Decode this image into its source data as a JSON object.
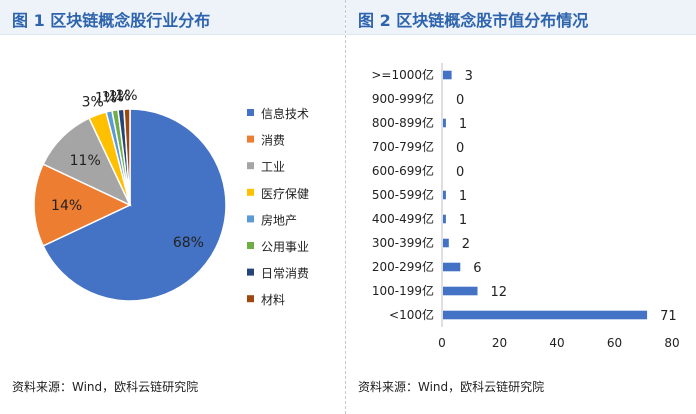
{
  "left": {
    "title": "图 1 区块链概念股行业分布",
    "source": "资料来源：Wind，欧科云链研究院"
  },
  "right": {
    "title": "图 2 区块链概念股市值分布情况",
    "source": "资料来源：Wind，欧科云链研究院"
  },
  "chart_data": [
    {
      "type": "pie",
      "title": "区块链概念股行业分布",
      "legend_position": "right",
      "slices": [
        {
          "label": "信息技术",
          "value": 68,
          "display": "68%",
          "color": "#4472c4"
        },
        {
          "label": "消费",
          "value": 14,
          "display": "14%",
          "color": "#ed7d31"
        },
        {
          "label": "工业",
          "value": 11,
          "display": "11%",
          "color": "#a5a5a5"
        },
        {
          "label": "医疗保健",
          "value": 3,
          "display": "3%",
          "color": "#ffc000"
        },
        {
          "label": "房地产",
          "value": 1,
          "display": "1%",
          "color": "#5b9bd5"
        },
        {
          "label": "公用事业",
          "value": 1,
          "display": "1%",
          "color": "#70ad47"
        },
        {
          "label": "日常消费",
          "value": 1,
          "display": "1%",
          "color": "#264478"
        },
        {
          "label": "材料",
          "value": 1,
          "display": "1%",
          "color": "#9e480e"
        }
      ]
    },
    {
      "type": "bar",
      "orientation": "horizontal",
      "title": "区块链概念股市值分布情况",
      "categories": [
        ">=1000亿",
        "900-999亿",
        "800-899亿",
        "700-799亿",
        "600-699亿",
        "500-599亿",
        "400-499亿",
        "300-399亿",
        "200-299亿",
        "100-199亿",
        "<100亿"
      ],
      "values": [
        3,
        0,
        1,
        0,
        0,
        1,
        1,
        2,
        6,
        12,
        71
      ],
      "color": "#4472c4",
      "xlim": [
        0,
        80
      ],
      "xticks": [
        "0",
        "20",
        "40",
        "60",
        "80"
      ],
      "grid": false,
      "legend": "none"
    }
  ]
}
